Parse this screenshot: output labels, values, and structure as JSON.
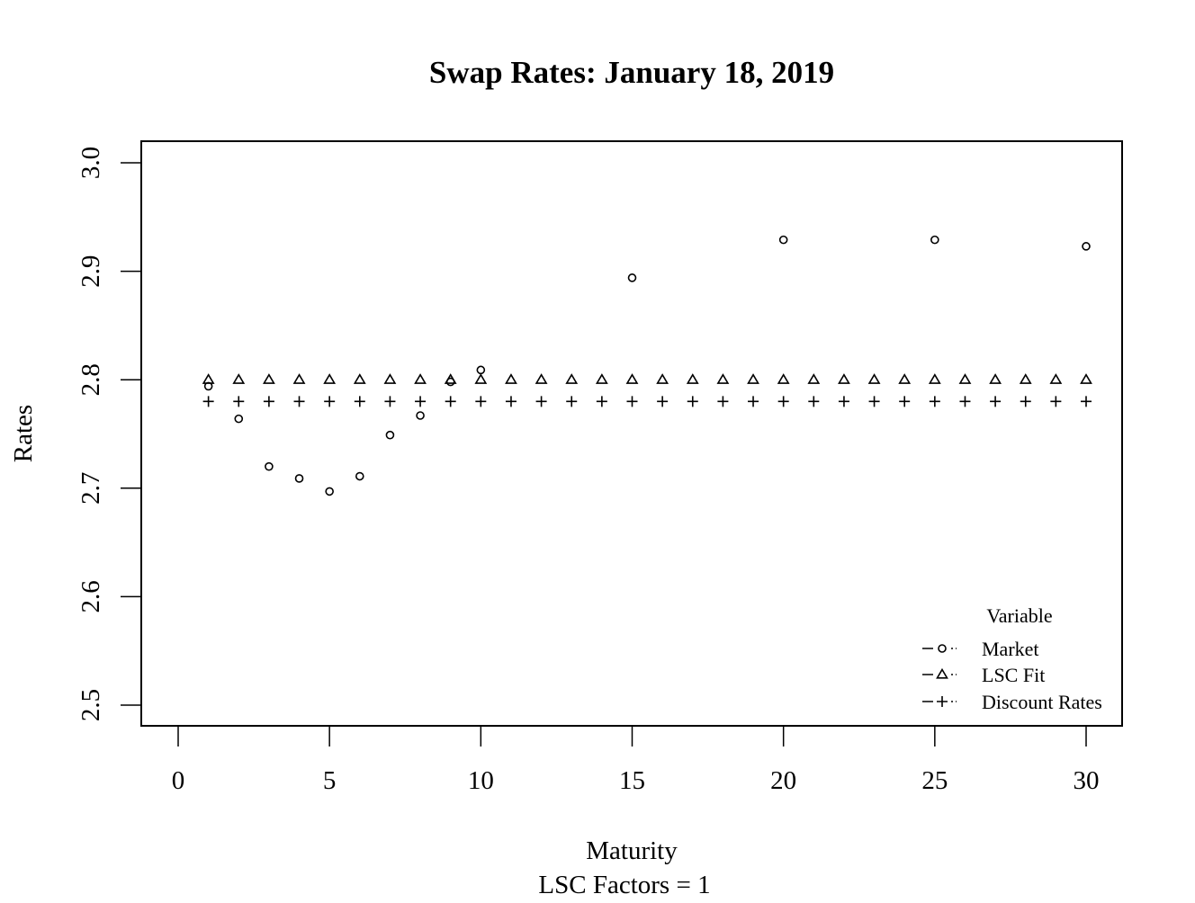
{
  "chart_data": {
    "type": "scatter",
    "title": "Swap Rates: January 18, 2019",
    "xlabel": "Maturity",
    "xlabel2": "LSC Factors = 1",
    "ylabel": "Rates",
    "xlim": [
      0,
      30
    ],
    "ylim": [
      2.5,
      3.0
    ],
    "x_ticks": [
      "0",
      "5",
      "10",
      "15",
      "20",
      "25",
      "30"
    ],
    "y_ticks": [
      "2.5",
      "2.6",
      "2.7",
      "2.8",
      "2.9",
      "3.0"
    ],
    "grid": false,
    "legend": {
      "title": "Variable",
      "position": "bottom-right",
      "entries": [
        "Market",
        "LSC Fit",
        "Discount Rates"
      ]
    },
    "series": [
      {
        "name": "Market",
        "marker": "circle",
        "x": [
          1,
          2,
          3,
          4,
          5,
          6,
          7,
          8,
          9,
          10,
          15,
          20,
          25,
          30
        ],
        "y": [
          2.794,
          2.764,
          2.72,
          2.709,
          2.697,
          2.711,
          2.749,
          2.767,
          2.798,
          2.809,
          2.894,
          2.929,
          2.929,
          2.923
        ]
      },
      {
        "name": "LSC Fit",
        "marker": "triangle",
        "x": [
          1,
          2,
          3,
          4,
          5,
          6,
          7,
          8,
          9,
          10,
          11,
          12,
          13,
          14,
          15,
          16,
          17,
          18,
          19,
          20,
          21,
          22,
          23,
          24,
          25,
          26,
          27,
          28,
          29,
          30
        ],
        "y": [
          2.8,
          2.8,
          2.8,
          2.8,
          2.8,
          2.8,
          2.8,
          2.8,
          2.8,
          2.8,
          2.8,
          2.8,
          2.8,
          2.8,
          2.8,
          2.8,
          2.8,
          2.8,
          2.8,
          2.8,
          2.8,
          2.8,
          2.8,
          2.8,
          2.8,
          2.8,
          2.8,
          2.8,
          2.8,
          2.8
        ]
      },
      {
        "name": "Discount Rates",
        "marker": "plus",
        "x": [
          1,
          2,
          3,
          4,
          5,
          6,
          7,
          8,
          9,
          10,
          11,
          12,
          13,
          14,
          15,
          16,
          17,
          18,
          19,
          20,
          21,
          22,
          23,
          24,
          25,
          26,
          27,
          28,
          29,
          30
        ],
        "y": [
          2.78,
          2.78,
          2.78,
          2.78,
          2.78,
          2.78,
          2.78,
          2.78,
          2.78,
          2.78,
          2.78,
          2.78,
          2.78,
          2.78,
          2.78,
          2.78,
          2.78,
          2.78,
          2.78,
          2.78,
          2.78,
          2.78,
          2.78,
          2.78,
          2.78,
          2.78,
          2.78,
          2.78,
          2.78,
          2.78
        ]
      }
    ]
  }
}
